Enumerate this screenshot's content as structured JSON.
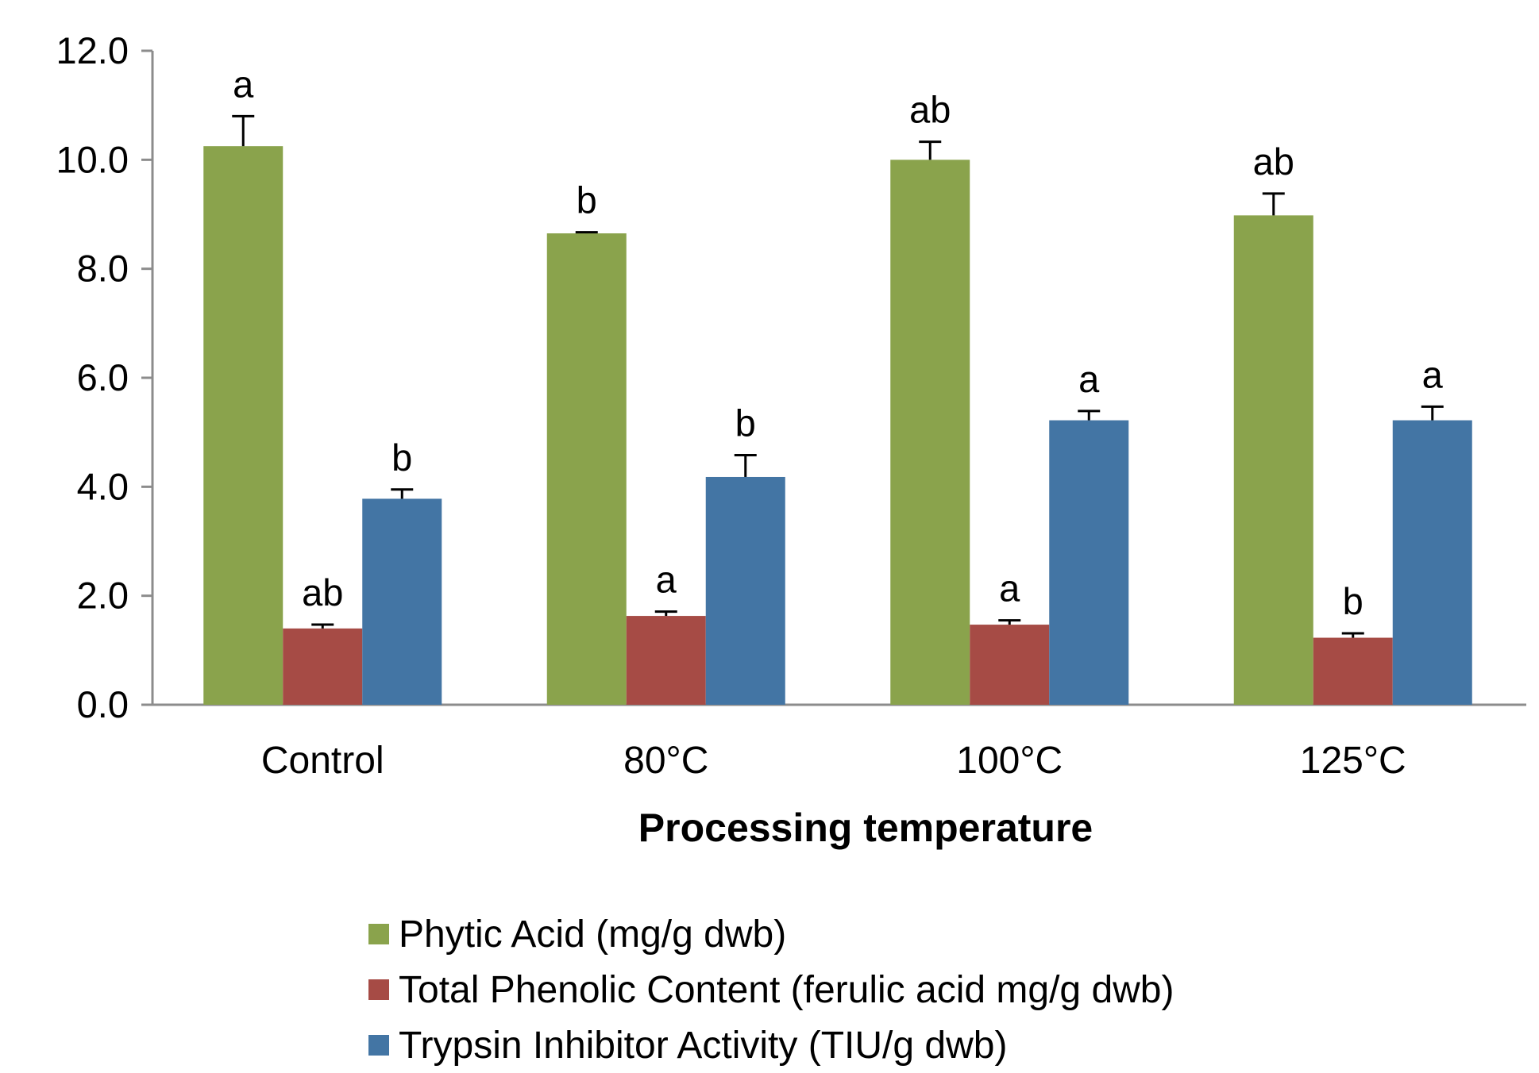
{
  "chart_data": {
    "type": "bar",
    "title": "",
    "xlabel": "Processing temperature",
    "ylabel": "",
    "ylim": [
      0,
      12
    ],
    "yticks": [
      "0.0",
      "2.0",
      "4.0",
      "6.0",
      "8.0",
      "10.0",
      "12.0"
    ],
    "grid": false,
    "legend_position": "bottom",
    "categories": [
      "Control",
      "80°C",
      "100°C",
      "125°C"
    ],
    "series": [
      {
        "name": "Phytic Acid (mg/g dwb)",
        "color": "#8aa34c",
        "values": [
          10.25,
          8.65,
          10.0,
          8.98
        ],
        "errors": [
          0.55,
          0.02,
          0.33,
          0.4
        ],
        "letters": [
          "a",
          "b",
          "ab",
          "ab"
        ]
      },
      {
        "name": "Total Phenolic Content (ferulic acid mg/g dwb)",
        "color": "#a64b45",
        "values": [
          1.4,
          1.63,
          1.47,
          1.23
        ],
        "errors": [
          0.07,
          0.08,
          0.08,
          0.08
        ],
        "letters": [
          "ab",
          "a",
          "a",
          "b"
        ]
      },
      {
        "name": "Trypsin Inhibitor Activity (TIU/g dwb)",
        "color": "#4375a4",
        "values": [
          3.78,
          4.18,
          5.22,
          5.22
        ],
        "errors": [
          0.17,
          0.4,
          0.17,
          0.25
        ],
        "letters": [
          "b",
          "b",
          "a",
          "a"
        ]
      }
    ]
  }
}
